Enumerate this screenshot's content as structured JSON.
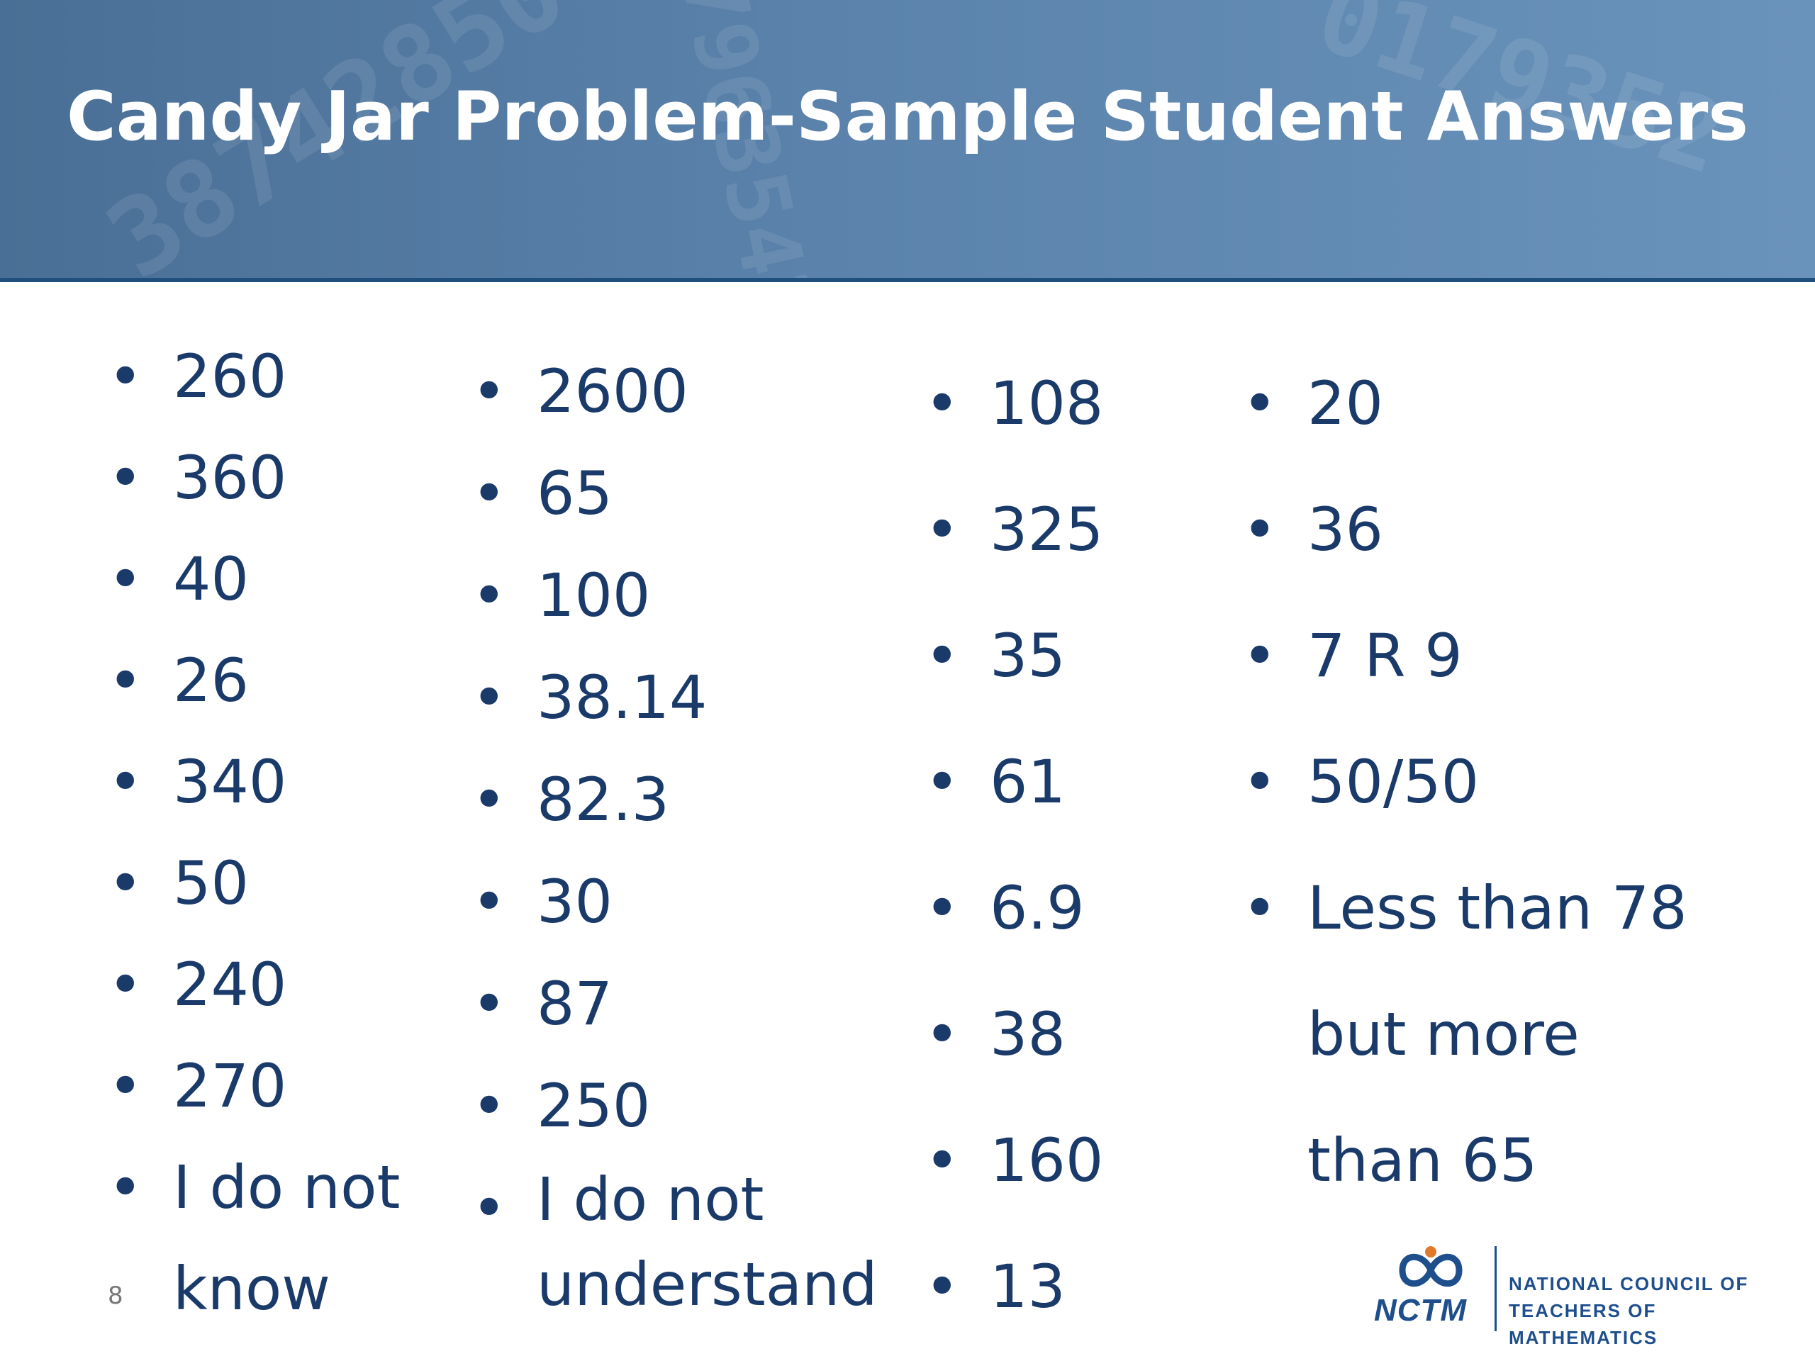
{
  "title": "Candy Jar Problem-Sample Student Answers",
  "columns": [
    [
      "260",
      "360",
      "40",
      "26",
      "340",
      "50",
      "240",
      "270",
      "I do not know"
    ],
    [
      "2600",
      "65",
      "100",
      "38.14",
      "82.3",
      "30",
      "87",
      "250",
      "I do not understand"
    ],
    [
      "108",
      "325",
      "35",
      "61",
      "6.9",
      "38",
      "160",
      "13"
    ],
    [
      "20",
      "36",
      "7 R 9",
      "50/50",
      "Less than 78 but more than 65"
    ]
  ],
  "page_number": "8",
  "logo": {
    "abbr": "NCTM",
    "name_line1": "NATIONAL COUNCIL OF",
    "name_line2": "TEACHERS OF MATHEMATICS"
  },
  "colors": {
    "header": "#5a82ab",
    "header_rule": "#1f4f7d",
    "text": "#1a3a6a",
    "logo": "#1e4f8c"
  }
}
